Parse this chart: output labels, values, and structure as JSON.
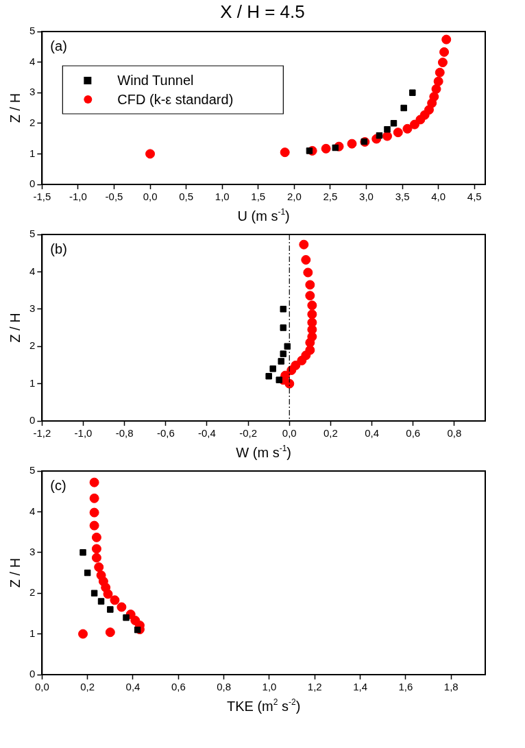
{
  "chart_data": [
    {
      "type": "scatter",
      "title": "X / H = 4.5",
      "xlabel": "U (m s$^{-1}$)",
      "ylabel": "Z / H",
      "annotations": [
        "(a)"
      ],
      "legend": "top left",
      "grid": false,
      "xlim": [
        -1.5,
        4.65
      ],
      "ylim": [
        0,
        5
      ],
      "xticks": [
        {
          "value": -1.5,
          "label": "-1,5"
        },
        {
          "value": -1,
          "label": "-1,0"
        },
        {
          "value": -0.5,
          "label": "-0,5"
        },
        {
          "value": 0,
          "label": "0,0"
        },
        {
          "value": 0.5,
          "label": "0,5"
        },
        {
          "value": 1,
          "label": "1,0"
        },
        {
          "value": 1.5,
          "label": "1,5"
        },
        {
          "value": 2,
          "label": "2,0"
        },
        {
          "value": 2.5,
          "label": "2,5"
        },
        {
          "value": 3,
          "label": "3,0"
        },
        {
          "value": 3.5,
          "label": "3,5"
        },
        {
          "value": 4,
          "label": "4,0"
        },
        {
          "value": 4.5,
          "label": "4,5"
        }
      ],
      "yticks": [
        0,
        1,
        2,
        3,
        4,
        5
      ],
      "series": [
        {
          "name": "Wind Tunnel",
          "color": "#000000",
          "marker": "square",
          "x": [
            2.21,
            2.57,
            2.97,
            3.18,
            3.29,
            3.38,
            3.52,
            3.64
          ],
          "values": [
            1.1,
            1.2,
            1.4,
            1.6,
            1.8,
            2.0,
            2.5,
            3.0
          ]
        },
        {
          "name": "CFD (k-ε standard)",
          "color": "#ff0000",
          "marker": "circle",
          "x": [
            0,
            1.87,
            2.25,
            2.44,
            2.62,
            2.8,
            2.98,
            3.14,
            3.29,
            3.44,
            3.57,
            3.67,
            3.75,
            3.81,
            3.87,
            3.91,
            3.94,
            3.97,
            4.0,
            4.02,
            4.06,
            4.08,
            4.11
          ],
          "values": [
            1.0,
            1.05,
            1.1,
            1.17,
            1.24,
            1.33,
            1.39,
            1.49,
            1.58,
            1.7,
            1.82,
            1.96,
            2.12,
            2.27,
            2.44,
            2.66,
            2.87,
            3.12,
            3.37,
            3.66,
            3.99,
            4.33,
            4.74
          ]
        }
      ]
    },
    {
      "type": "scatter",
      "xlabel": "W (m s$^{-1}$)",
      "ylabel": "Z / H",
      "annotations": [
        "(b)"
      ],
      "legend": false,
      "grid": false,
      "xlim": [
        -1.2,
        0.95
      ],
      "ylim": [
        0,
        5
      ],
      "xticks": [
        {
          "value": -1.2,
          "label": "-1,2"
        },
        {
          "value": -1,
          "label": "-1,0"
        },
        {
          "value": -0.8,
          "label": "-0,8"
        },
        {
          "value": -0.6,
          "label": "-0,6"
        },
        {
          "value": -0.4,
          "label": "-0,4"
        },
        {
          "value": -0.2,
          "label": "-0,2"
        },
        {
          "value": 0,
          "label": "0,0"
        },
        {
          "value": 0.2,
          "label": "0,2"
        },
        {
          "value": 0.4,
          "label": "0,4"
        },
        {
          "value": 0.6,
          "label": "0,6"
        },
        {
          "value": 0.8,
          "label": "0,8"
        }
      ],
      "yticks": [
        0,
        1,
        2,
        3,
        4,
        5
      ],
      "ref_lines": [
        {
          "axis": "x",
          "value": 0,
          "color": "#000000",
          "line_style": "dashed"
        }
      ],
      "series": [
        {
          "color": "#000000",
          "marker": "square",
          "x": [
            -0.03,
            -0.03,
            -0.01,
            -0.03,
            -0.04,
            -0.08,
            -0.1,
            -0.05
          ],
          "values": [
            3.0,
            2.5,
            2.0,
            1.8,
            1.6,
            1.4,
            1.2,
            1.1
          ]
        },
        {
          "color": "#ff0000",
          "marker": "circle",
          "x": [
            0,
            -0.03,
            -0.02,
            0.01,
            0.03,
            0.06,
            0.08,
            0.1,
            0.1,
            0.11,
            0.11,
            0.11,
            0.11,
            0.11,
            0.1,
            0.1,
            0.09,
            0.08,
            0.07
          ],
          "values": [
            1.0,
            1.1,
            1.22,
            1.36,
            1.49,
            1.62,
            1.76,
            1.9,
            2.1,
            2.26,
            2.45,
            2.64,
            2.86,
            3.1,
            3.36,
            3.65,
            3.98,
            4.32,
            4.73
          ]
        }
      ]
    },
    {
      "type": "scatter",
      "xlabel": "TKE (m$^{2}$ s$^{-2}$)",
      "ylabel": "Z / H",
      "annotations": [
        "(c)"
      ],
      "legend": false,
      "grid": false,
      "xlim": [
        0,
        1.95
      ],
      "ylim": [
        0,
        5
      ],
      "xticks": [
        {
          "value": 0,
          "label": "0,0"
        },
        {
          "value": 0.2,
          "label": "0,2"
        },
        {
          "value": 0.4,
          "label": "0,4"
        },
        {
          "value": 0.6,
          "label": "0,6"
        },
        {
          "value": 0.8,
          "label": "0,8"
        },
        {
          "value": 1,
          "label": "1,0"
        },
        {
          "value": 1.2,
          "label": "1,2"
        },
        {
          "value": 1.4,
          "label": "1,4"
        },
        {
          "value": 1.6,
          "label": "1,6"
        },
        {
          "value": 1.8,
          "label": "1,8"
        }
      ],
      "yticks": [
        0,
        1,
        2,
        3,
        4,
        5
      ],
      "series": [
        {
          "color": "#000000",
          "marker": "square",
          "x": [
            0.18,
            0.2,
            0.23,
            0.26,
            0.3,
            0.37,
            0.42
          ],
          "values": [
            3.0,
            2.5,
            2.0,
            1.8,
            1.6,
            1.4,
            1.1
          ]
        },
        {
          "color": "#ff0000",
          "marker": "circle",
          "x": [
            0.18,
            0.3,
            0.43,
            0.43,
            0.41,
            0.39,
            0.35,
            0.32,
            0.29,
            0.28,
            0.27,
            0.26,
            0.25,
            0.24,
            0.24,
            0.24,
            0.23,
            0.23,
            0.23,
            0.23
          ],
          "values": [
            1.0,
            1.04,
            1.11,
            1.21,
            1.33,
            1.48,
            1.66,
            1.83,
            1.98,
            2.14,
            2.29,
            2.44,
            2.64,
            2.87,
            3.09,
            3.37,
            3.66,
            3.98,
            4.33,
            4.72
          ]
        }
      ]
    }
  ]
}
